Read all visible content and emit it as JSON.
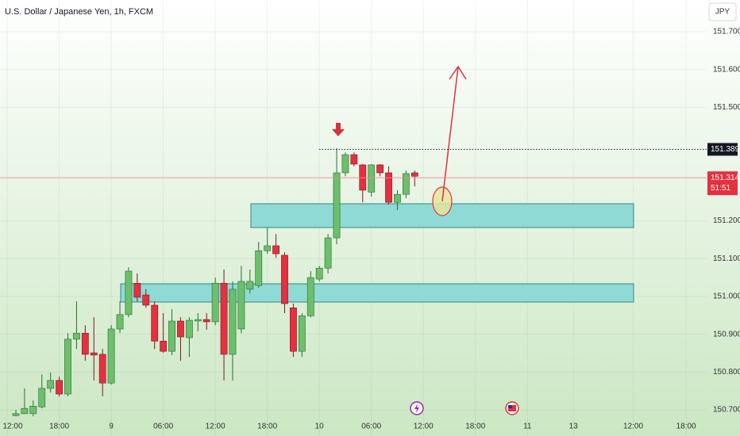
{
  "chart_data": {
    "type": "candlestick",
    "title": "U.S. Dollar / Japanese Yen, 1h, FXCM",
    "currency": "JPY",
    "x": [
      0,
      1,
      2,
      3,
      4,
      5,
      6,
      7,
      8,
      9,
      10,
      11,
      12,
      13,
      14,
      15,
      16,
      17,
      18,
      19,
      20,
      21,
      22,
      23,
      24,
      25,
      26,
      27,
      28,
      29,
      30,
      31,
      32,
      33,
      34,
      35,
      36,
      37,
      38,
      39,
      40,
      41,
      42,
      43,
      44,
      45,
      46
    ],
    "open": [
      150.685,
      150.69,
      150.69,
      150.708,
      150.757,
      150.778,
      150.742,
      150.887,
      150.903,
      150.851,
      150.847,
      150.771,
      150.914,
      150.952,
      151.035,
      151.004,
      150.977,
      150.882,
      150.855,
      150.935,
      150.891,
      150.935,
      150.939,
      150.933,
      151.035,
      150.847,
      150.914,
      151.019,
      151.029,
      151.121,
      151.134,
      151.109,
      150.97,
      150.855,
      150.949,
      151.046,
      151.075,
      151.155,
      151.327,
      151.375,
      151.348,
      151.276,
      151.348,
      151.327,
      151.249,
      151.27,
      151.327
    ],
    "high": [
      150.7,
      150.757,
      150.725,
      150.794,
      150.799,
      150.788,
      150.903,
      150.987,
      150.924,
      150.945,
      150.861,
      150.924,
      150.987,
      151.077,
      151.061,
      151.019,
      150.987,
      150.956,
      150.966,
      150.945,
      150.945,
      150.956,
      150.956,
      151.05,
      151.071,
      151.04,
      151.081,
      151.071,
      151.144,
      151.182,
      151.165,
      151.117,
      150.981,
      150.956,
      151.067,
      151.081,
      151.165,
      151.392,
      151.381,
      151.381,
      151.35,
      151.35,
      151.35,
      151.344,
      151.281,
      151.333,
      151.333
    ],
    "low": [
      150.683,
      150.69,
      150.683,
      150.704,
      150.746,
      150.736,
      150.736,
      150.861,
      150.83,
      150.778,
      150.736,
      150.767,
      150.903,
      150.945,
      150.987,
      150.97,
      150.861,
      150.851,
      150.845,
      150.83,
      150.84,
      150.908,
      150.912,
      150.924,
      150.778,
      150.778,
      150.903,
      151.008,
      151.023,
      151.113,
      151.102,
      150.956,
      150.84,
      150.84,
      150.945,
      151.04,
      151.061,
      151.138,
      151.318,
      151.344,
      151.249,
      151.264,
      151.318,
      151.243,
      151.228,
      151.26,
      151.291
    ],
    "close": [
      150.69,
      150.704,
      150.71,
      150.757,
      150.778,
      150.742,
      150.887,
      150.903,
      150.847,
      150.845,
      150.771,
      150.914,
      150.952,
      151.067,
      150.998,
      150.977,
      150.882,
      150.855,
      150.935,
      150.893,
      150.937,
      150.939,
      150.933,
      151.035,
      150.847,
      151.019,
      151.04,
      151.04,
      151.121,
      151.134,
      151.113,
      150.981,
      150.855,
      150.949,
      151.05,
      151.075,
      151.155,
      151.327,
      151.375,
      151.35,
      151.281,
      151.348,
      151.327,
      151.249,
      151.27,
      151.325,
      151.318
    ],
    "up_color": "#6cbf6c",
    "down_color": "#e53040",
    "xlim": [
      -1.83,
      79.67
    ],
    "xticks": [
      {
        "value": -1,
        "label": "12:00"
      },
      {
        "value": 5,
        "label": "18:00"
      },
      {
        "value": 11,
        "label": "9"
      },
      {
        "value": 17,
        "label": "06:00"
      },
      {
        "value": 23,
        "label": "12:00"
      },
      {
        "value": 29,
        "label": "18:00"
      },
      {
        "value": 35,
        "label": "10"
      },
      {
        "value": 41,
        "label": "06:00"
      },
      {
        "value": 47,
        "label": "12:00"
      },
      {
        "value": 53,
        "label": "18:00"
      },
      {
        "value": 59,
        "label": "11"
      },
      {
        "value": 64.3,
        "label": "13"
      },
      {
        "value": 71.2,
        "label": "12:00"
      },
      {
        "value": 77.3,
        "label": "18:00"
      }
    ],
    "ylim": [
      150.631,
      151.784
    ],
    "yticks": [
      {
        "value": 150.7,
        "label": "150.700"
      },
      {
        "value": 150.8,
        "label": "150.800"
      },
      {
        "value": 150.9,
        "label": "150.900"
      },
      {
        "value": 151.0,
        "label": "151.000"
      },
      {
        "value": 151.1,
        "label": "151.100"
      },
      {
        "value": 151.2,
        "label": "151.200"
      },
      {
        "value": 151.5,
        "label": "151.500"
      },
      {
        "value": 151.6,
        "label": "151.600"
      },
      {
        "value": 151.7,
        "label": "151.700"
      }
    ],
    "grid": true,
    "price_line": 151.389,
    "last_price": 151.314,
    "countdown": "51:51"
  }
}
